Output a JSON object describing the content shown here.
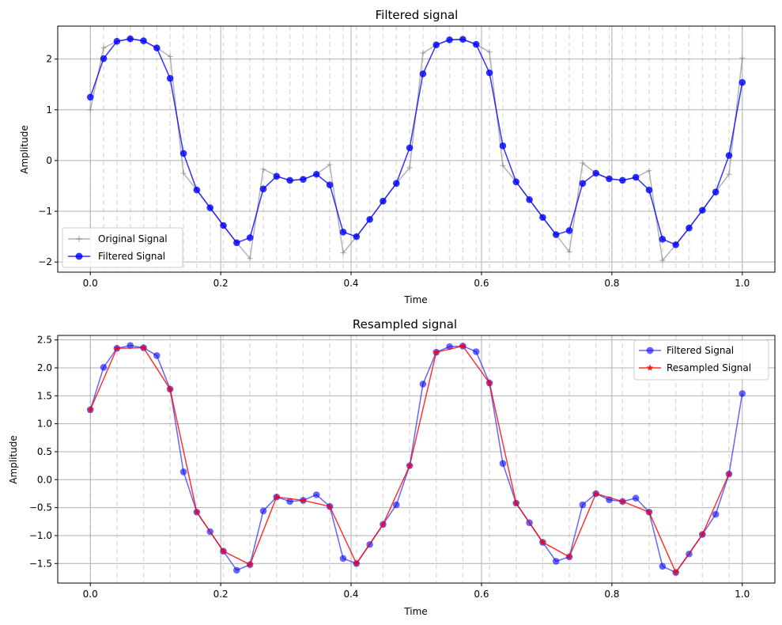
{
  "chart_data": [
    {
      "type": "line",
      "title": "Filtered signal",
      "xlabel": "Time",
      "ylabel": "Amplitude",
      "xlim": [
        -0.05,
        1.05
      ],
      "ylim": [
        -2.2,
        2.65
      ],
      "xticks": [
        0.0,
        0.2,
        0.4,
        0.6,
        0.8,
        1.0
      ],
      "xtick_labels": [
        "0.0",
        "0.2",
        "0.4",
        "0.6",
        "0.8",
        "1.0"
      ],
      "yticks": [
        -2,
        -1,
        0,
        1,
        2
      ],
      "ytick_labels": [
        "−2",
        "−1",
        "0",
        "1",
        "2"
      ],
      "grid": true,
      "legend_position": "lower-left",
      "series": [
        {
          "name": "Original Signal",
          "color": "#808080",
          "marker": "plus",
          "x": [
            0.0,
            0.0204,
            0.0408,
            0.0612,
            0.0816,
            0.102,
            0.1224,
            0.1429,
            0.1633,
            0.1837,
            0.2041,
            0.2245,
            0.2449,
            0.2653,
            0.2857,
            0.3061,
            0.3265,
            0.3469,
            0.3673,
            0.3878,
            0.4082,
            0.4286,
            0.449,
            0.4694,
            0.4898,
            0.5102,
            0.5306,
            0.551,
            0.5714,
            0.5918,
            0.6122,
            0.6327,
            0.6531,
            0.6735,
            0.6939,
            0.7143,
            0.7347,
            0.7551,
            0.7755,
            0.7959,
            0.8163,
            0.8367,
            0.8571,
            0.8776,
            0.898,
            0.9184,
            0.9388,
            0.9592,
            0.9796,
            1.0
          ],
          "y": [
            1.0,
            2.22,
            2.35,
            2.4,
            2.36,
            2.22,
            2.05,
            -0.25,
            -0.58,
            -0.93,
            -1.28,
            -1.62,
            -1.93,
            -0.17,
            -0.3,
            -0.4,
            -0.37,
            -0.27,
            -0.08,
            -1.82,
            -1.5,
            -1.16,
            -0.8,
            -0.45,
            -0.14,
            2.12,
            2.28,
            2.38,
            2.38,
            2.29,
            2.14,
            -0.1,
            -0.42,
            -0.77,
            -1.12,
            -1.46,
            -1.8,
            -0.05,
            -0.25,
            -0.36,
            -0.39,
            -0.33,
            -0.2,
            -1.97,
            -1.66,
            -1.33,
            -0.98,
            -0.62,
            -0.27,
            2.02
          ]
        },
        {
          "name": "Filtered Signal",
          "color": "#0000ff",
          "marker": "circle",
          "x": [
            0.0,
            0.0204,
            0.0408,
            0.0612,
            0.0816,
            0.102,
            0.1224,
            0.1429,
            0.1633,
            0.1837,
            0.2041,
            0.2245,
            0.2449,
            0.2653,
            0.2857,
            0.3061,
            0.3265,
            0.3469,
            0.3673,
            0.3878,
            0.4082,
            0.4286,
            0.449,
            0.4694,
            0.4898,
            0.5102,
            0.5306,
            0.551,
            0.5714,
            0.5918,
            0.6122,
            0.6327,
            0.6531,
            0.6735,
            0.6939,
            0.7143,
            0.7347,
            0.7551,
            0.7755,
            0.7959,
            0.8163,
            0.8367,
            0.8571,
            0.8776,
            0.898,
            0.9184,
            0.9388,
            0.9592,
            0.9796,
            1.0
          ],
          "y": [
            1.25,
            2.01,
            2.35,
            2.4,
            2.36,
            2.22,
            1.62,
            0.14,
            -0.58,
            -0.93,
            -1.28,
            -1.62,
            -1.52,
            -0.56,
            -0.31,
            -0.39,
            -0.37,
            -0.27,
            -0.48,
            -1.41,
            -1.5,
            -1.16,
            -0.8,
            -0.45,
            0.25,
            1.71,
            2.28,
            2.38,
            2.39,
            2.29,
            1.73,
            0.29,
            -0.42,
            -0.77,
            -1.12,
            -1.46,
            -1.38,
            -0.45,
            -0.25,
            -0.36,
            -0.39,
            -0.33,
            -0.58,
            -1.55,
            -1.66,
            -1.33,
            -0.98,
            -0.62,
            0.1,
            1.54
          ]
        }
      ]
    },
    {
      "type": "line",
      "title": "Resampled signal",
      "xlabel": "Time",
      "ylabel": "Amplitude",
      "xlim": [
        -0.05,
        1.05
      ],
      "ylim": [
        -1.85,
        2.58
      ],
      "xticks": [
        0.0,
        0.2,
        0.4,
        0.6,
        0.8,
        1.0
      ],
      "xtick_labels": [
        "0.0",
        "0.2",
        "0.4",
        "0.6",
        "0.8",
        "1.0"
      ],
      "yticks": [
        -1.5,
        -1.0,
        -0.5,
        0.0,
        0.5,
        1.0,
        1.5,
        2.0,
        2.5
      ],
      "ytick_labels": [
        "−1.5",
        "−1.0",
        "−0.5",
        "0.0",
        "0.5",
        "1.0",
        "1.5",
        "2.0",
        "2.5"
      ],
      "grid": true,
      "legend_position": "upper-right",
      "series": [
        {
          "name": "Filtered Signal",
          "color": "#0000ff",
          "marker": "circle",
          "x": [
            0.0,
            0.0204,
            0.0408,
            0.0612,
            0.0816,
            0.102,
            0.1224,
            0.1429,
            0.1633,
            0.1837,
            0.2041,
            0.2245,
            0.2449,
            0.2653,
            0.2857,
            0.3061,
            0.3265,
            0.3469,
            0.3673,
            0.3878,
            0.4082,
            0.4286,
            0.449,
            0.4694,
            0.4898,
            0.5102,
            0.5306,
            0.551,
            0.5714,
            0.5918,
            0.6122,
            0.6327,
            0.6531,
            0.6735,
            0.6939,
            0.7143,
            0.7347,
            0.7551,
            0.7755,
            0.7959,
            0.8163,
            0.8367,
            0.8571,
            0.8776,
            0.898,
            0.9184,
            0.9388,
            0.9592,
            0.9796,
            1.0
          ],
          "y": [
            1.25,
            2.01,
            2.35,
            2.4,
            2.36,
            2.22,
            1.62,
            0.14,
            -0.58,
            -0.93,
            -1.28,
            -1.62,
            -1.52,
            -0.56,
            -0.31,
            -0.39,
            -0.37,
            -0.27,
            -0.48,
            -1.41,
            -1.5,
            -1.16,
            -0.8,
            -0.45,
            0.25,
            1.71,
            2.28,
            2.38,
            2.39,
            2.29,
            1.73,
            0.29,
            -0.42,
            -0.77,
            -1.12,
            -1.46,
            -1.38,
            -0.45,
            -0.25,
            -0.36,
            -0.39,
            -0.33,
            -0.58,
            -1.55,
            -1.66,
            -1.33,
            -0.98,
            -0.62,
            0.1,
            1.54
          ]
        },
        {
          "name": "Resampled Signal",
          "color": "#ff0000",
          "marker": "star",
          "x": [
            0.0,
            0.0408,
            0.0816,
            0.1224,
            0.1633,
            0.2041,
            0.2449,
            0.2857,
            0.3265,
            0.3673,
            0.4082,
            0.449,
            0.4898,
            0.5306,
            0.5714,
            0.6122,
            0.6531,
            0.6939,
            0.7347,
            0.7755,
            0.8163,
            0.8571,
            0.898,
            0.9388,
            0.9796
          ],
          "y": [
            1.25,
            2.35,
            2.36,
            1.62,
            -0.58,
            -1.28,
            -1.52,
            -0.31,
            -0.37,
            -0.48,
            -1.5,
            -0.8,
            0.25,
            2.28,
            2.39,
            1.73,
            -0.42,
            -1.12,
            -1.38,
            -0.25,
            -0.39,
            -0.58,
            -1.66,
            -0.98,
            0.1
          ]
        }
      ]
    }
  ]
}
